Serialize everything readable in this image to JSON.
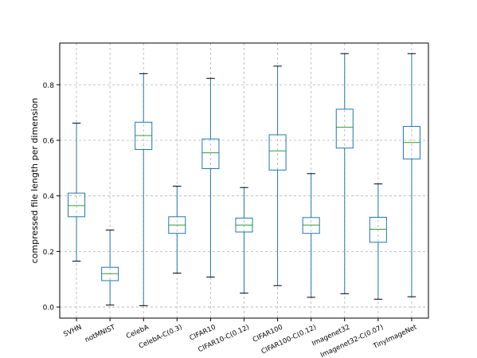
{
  "figure": {
    "ylabel": "compressed file length per dimension"
  },
  "colors": {
    "box": "#1f77b4",
    "median": "#2ca02c",
    "whisker_cap": "#000000",
    "grid": "#b0b0b0",
    "spine": "#000000"
  },
  "chart_data": {
    "type": "box",
    "title": "",
    "xlabel": "",
    "ylabel": "compressed file length per dimension",
    "ylim": [
      -0.04,
      0.95
    ],
    "yticks": [
      0.0,
      0.2,
      0.4,
      0.6,
      0.8
    ],
    "ytick_labels": [
      "0.0",
      "0.2",
      "0.4",
      "0.6",
      "0.8"
    ],
    "grid": true,
    "categories": [
      "SVHN",
      "notMNIST",
      "CelebA",
      "CelebA-C(0.3)",
      "CIFAR10",
      "CIFAR10-C(0.12)",
      "CIFAR100",
      "CIFAR100-C(0.12)",
      "Imagenet32",
      "Imagenet32-C(0.07)",
      "TinyImageNet"
    ],
    "boxes": [
      {
        "label": "SVHN",
        "whislo": 0.165,
        "q1": 0.325,
        "med": 0.365,
        "q3": 0.41,
        "whishi": 0.662
      },
      {
        "label": "notMNIST",
        "whislo": 0.007,
        "q1": 0.095,
        "med": 0.12,
        "q3": 0.143,
        "whishi": 0.277
      },
      {
        "label": "CelebA",
        "whislo": 0.005,
        "q1": 0.567,
        "med": 0.617,
        "q3": 0.665,
        "whishi": 0.84
      },
      {
        "label": "CelebA-C(0.3)",
        "whislo": 0.122,
        "q1": 0.265,
        "med": 0.295,
        "q3": 0.325,
        "whishi": 0.435
      },
      {
        "label": "CIFAR10",
        "whislo": 0.108,
        "q1": 0.498,
        "med": 0.555,
        "q3": 0.605,
        "whishi": 0.823
      },
      {
        "label": "CIFAR10-C(0.12)",
        "whislo": 0.05,
        "q1": 0.27,
        "med": 0.295,
        "q3": 0.32,
        "whishi": 0.43
      },
      {
        "label": "CIFAR100",
        "whislo": 0.077,
        "q1": 0.493,
        "med": 0.562,
        "q3": 0.62,
        "whishi": 0.867
      },
      {
        "label": "CIFAR100-C(0.12)",
        "whislo": 0.035,
        "q1": 0.265,
        "med": 0.295,
        "q3": 0.322,
        "whishi": 0.48
      },
      {
        "label": "Imagenet32",
        "whislo": 0.048,
        "q1": 0.572,
        "med": 0.647,
        "q3": 0.712,
        "whishi": 0.912
      },
      {
        "label": "Imagenet32-C(0.07)",
        "whislo": 0.028,
        "q1": 0.233,
        "med": 0.28,
        "q3": 0.323,
        "whishi": 0.443
      },
      {
        "label": "TinyImageNet",
        "whislo": 0.037,
        "q1": 0.533,
        "med": 0.592,
        "q3": 0.65,
        "whishi": 0.912
      }
    ]
  }
}
